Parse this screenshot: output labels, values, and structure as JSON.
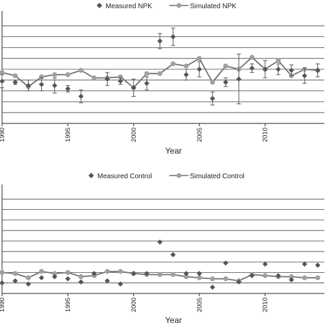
{
  "colors": {
    "measured": "#555555",
    "simulated": "#a0a0a0",
    "line": "#6f6f6f",
    "grid": "#444444"
  },
  "chart_data": [
    {
      "type": "line",
      "title": "",
      "xlabel": "Year",
      "ylabel": "",
      "xlim": [
        1990,
        2014.5
      ],
      "ylim": [
        0,
        10
      ],
      "gridlines": [
        1,
        2,
        3,
        4,
        5,
        6,
        7,
        8,
        9
      ],
      "xticks": [
        1990,
        1995,
        2000,
        2005,
        2010
      ],
      "legend": {
        "placement": "top-center"
      },
      "series": [
        {
          "name": "Measured NPK",
          "marker": "diamond",
          "x": [
            1990,
            1991,
            1992,
            1993,
            1994,
            1995,
            1996,
            1998,
            1999,
            2000,
            2001,
            2002,
            2003,
            2004,
            2005,
            2006,
            2007,
            2008,
            2009,
            2010,
            2011,
            2012,
            2013,
            2014
          ],
          "y": [
            3.9,
            3.8,
            3.5,
            3.6,
            3.5,
            3.2,
            2.5,
            4.1,
            3.9,
            3.3,
            3.7,
            7.6,
            8.0,
            4.5,
            5.0,
            2.3,
            3.8,
            4.1,
            5.1,
            5.0,
            5.0,
            4.9,
            4.4,
            4.9
          ],
          "err": [
            0.6,
            0.2,
            0.5,
            0.6,
            0.7,
            0.3,
            0.6,
            0.6,
            0.3,
            0.8,
            0.6,
            0.7,
            0.8,
            0.5,
            0.7,
            0.6,
            0.4,
            2.3,
            0.4,
            0.8,
            0.5,
            0.5,
            0.7,
            0.6
          ]
        },
        {
          "name": "Simulated NPK",
          "marker": "circle",
          "x": [
            1990,
            1991,
            1992,
            1993,
            1994,
            1995,
            1996,
            1997,
            1998,
            1999,
            2000,
            2001,
            2002,
            2003,
            2004,
            2005,
            2006,
            2007,
            2008,
            2009,
            2010,
            2011,
            2012,
            2013,
            2014
          ],
          "y": [
            4.7,
            4.4,
            3.4,
            4.3,
            4.5,
            4.5,
            4.9,
            4.2,
            4.2,
            4.3,
            3.3,
            4.6,
            4.6,
            5.5,
            5.3,
            6.0,
            3.8,
            5.3,
            5.0,
            6.1,
            5.0,
            5.8,
            4.4,
            5.0,
            4.9
          ]
        }
      ]
    },
    {
      "type": "line",
      "title": "",
      "xlabel": "Year",
      "ylabel": "",
      "xlim": [
        1990,
        2014.5
      ],
      "ylim": [
        0,
        10
      ],
      "gridlines": [
        1,
        2,
        3,
        4,
        5,
        6,
        7,
        8,
        9
      ],
      "xticks": [
        1990,
        1995,
        2000,
        2005,
        2010
      ],
      "legend": {
        "placement": "top-center"
      },
      "series": [
        {
          "name": "Measured Control",
          "marker": "diamond",
          "x": [
            1990,
            1991,
            1992,
            1993,
            1994,
            1995,
            1996,
            1997,
            1998,
            1999,
            2000,
            2001,
            2002,
            2003,
            2004,
            2005,
            2006,
            2007,
            2008,
            2009,
            2010,
            2011,
            2012,
            2013,
            2014
          ],
          "y": [
            1.0,
            1.2,
            0.9,
            1.5,
            1.6,
            1.4,
            1.1,
            1.9,
            1.2,
            0.9,
            1.9,
            1.9,
            4.9,
            3.7,
            1.9,
            1.9,
            0.6,
            2.9,
            1.1,
            1.7,
            2.8,
            1.7,
            1.3,
            2.8,
            2.7
          ]
        },
        {
          "name": "Simulated Control",
          "marker": "circle",
          "x": [
            1990,
            1991,
            1992,
            1993,
            1994,
            1995,
            1996,
            1997,
            1998,
            1999,
            2000,
            2001,
            2002,
            2003,
            2004,
            2005,
            2006,
            2007,
            2008,
            2009,
            2010,
            2011,
            2012,
            2013,
            2014
          ],
          "y": [
            2.0,
            1.9,
            1.5,
            2.1,
            1.9,
            2.0,
            1.6,
            1.7,
            2.1,
            2.1,
            1.9,
            1.8,
            1.8,
            1.8,
            1.6,
            1.5,
            1.4,
            1.4,
            1.2,
            1.8,
            1.7,
            1.6,
            1.6,
            1.5,
            1.5
          ]
        }
      ]
    }
  ]
}
